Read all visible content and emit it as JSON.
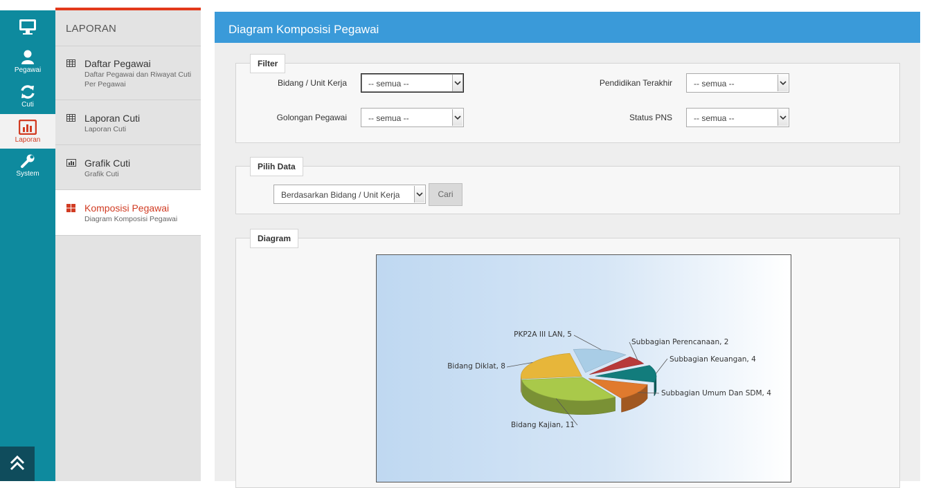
{
  "nav": {
    "items": [
      {
        "label": "",
        "icon": "monitor-icon"
      },
      {
        "label": "Pegawai",
        "icon": "user-icon"
      },
      {
        "label": "Cuti",
        "icon": "refresh-icon"
      },
      {
        "label": "Laporan",
        "icon": "bar-chart-icon",
        "active": true
      },
      {
        "label": "System",
        "icon": "wrench-icon"
      }
    ],
    "scroll_top_icon": "double-chevron-up-icon"
  },
  "sidebar": {
    "header": "LAPORAN",
    "items": [
      {
        "title": "Daftar Pegawai",
        "subtitle": "Daftar Pegawai dan Riwayat Cuti Per Pegawai",
        "icon": "table-icon"
      },
      {
        "title": "Laporan Cuti",
        "subtitle": "Laporan Cuti",
        "icon": "table-icon"
      },
      {
        "title": "Grafik Cuti",
        "subtitle": "Grafik Cuti",
        "icon": "bar-chart-icon"
      },
      {
        "title": "Komposisi Pegawai",
        "subtitle": "Diagram Komposisi Pegawai",
        "icon": "grid-icon",
        "active": true
      }
    ]
  },
  "main": {
    "title": "Diagram Komposisi Pegawai",
    "filter": {
      "legend": "Filter",
      "bidang_label": "Bidang / Unit Kerja",
      "bidang_value": "-- semua --",
      "pendidikan_label": "Pendidikan Terakhir",
      "pendidikan_value": "-- semua --",
      "golongan_label": "Golongan Pegawai",
      "golongan_value": "-- semua --",
      "status_label": "Status PNS",
      "status_value": "-- semua --"
    },
    "pilih_data": {
      "legend": "Pilih Data",
      "select_value": "Berdasarkan Bidang / Unit Kerja",
      "cari_label": "Cari"
    },
    "diagram": {
      "legend": "Diagram"
    }
  },
  "colors": {
    "accent": "#3a9ad9",
    "nav": "#0e8a9e",
    "active_red": "#d13b22"
  },
  "chart_data": {
    "type": "pie",
    "title": "",
    "slices": [
      {
        "label": "PKP2A III LAN",
        "value": 5,
        "display": "PKP2A III LAN, 5",
        "color": "#a9cde6"
      },
      {
        "label": "Subbagian Perencanaan",
        "value": 2,
        "display": "Subbagian Perencanaan, 2",
        "color": "#b83a3a"
      },
      {
        "label": "Subbagian Keuangan",
        "value": 4,
        "display": "Subbagian Keuangan, 4",
        "color": "#127c7c"
      },
      {
        "label": "Subbagian Umum Dan SDM",
        "value": 4,
        "display": "Subbagian Umum Dan SDM, 4",
        "color": "#e07a2e"
      },
      {
        "label": "Bidang Kajian",
        "value": 11,
        "display": "Bidang Kajian, 11",
        "color": "#a9c94a"
      },
      {
        "label": "Bidang Diklat",
        "value": 8,
        "display": "Bidang Diklat, 8",
        "color": "#e7b63a"
      }
    ]
  }
}
